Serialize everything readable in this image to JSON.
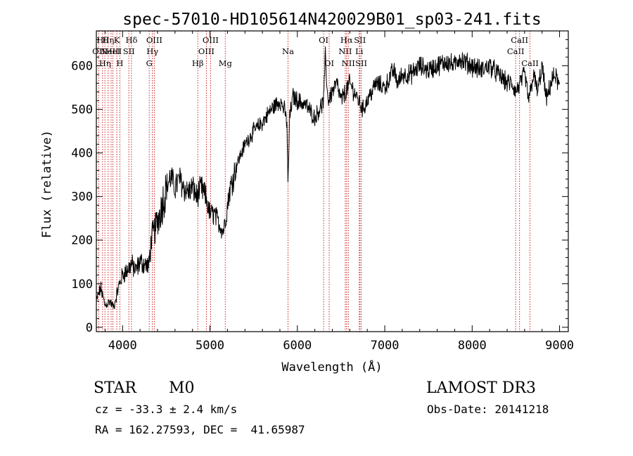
{
  "colors": {
    "axis": "#000000",
    "spectrum": "#000000",
    "line_marker": "#cc2222",
    "background": "#ffffff"
  },
  "chart_data": {
    "type": "line",
    "title": "spec-57010-HD105614N420029B01_sp03-241.fits",
    "xlabel": "Wavelength (Å)",
    "ylabel": "Flux (relative)",
    "xlim": [
      3700,
      9100
    ],
    "ylim": [
      -10,
      680
    ],
    "xticks": [
      "4000",
      "5000",
      "6000",
      "7000",
      "8000",
      "9000"
    ],
    "yticks": [
      "0",
      "100",
      "200",
      "300",
      "400",
      "500",
      "600"
    ],
    "grid": false,
    "series": [
      {
        "x": [
          3700,
          3750,
          3800,
          3850,
          3900,
          3950,
          4000,
          4050,
          4100,
          4150,
          4200,
          4250,
          4300,
          4330,
          4380,
          4450,
          4500,
          4550,
          4600,
          4650,
          4700,
          4750,
          4800,
          4850,
          4900,
          4950,
          5000,
          5050,
          5100,
          5150,
          5180,
          5220,
          5300,
          5400,
          5500,
          5600,
          5700,
          5800,
          5850,
          5880,
          5893,
          5910,
          5950,
          6000,
          6100,
          6200,
          6250,
          6280,
          6300,
          6320,
          6350,
          6400,
          6450,
          6500,
          6550,
          6600,
          6650,
          6700,
          6750,
          6800,
          6900,
          7000,
          7100,
          7150,
          7200,
          7300,
          7400,
          7500,
          7600,
          7700,
          7800,
          7850,
          7900,
          8000,
          8100,
          8200,
          8300,
          8400,
          8450,
          8500,
          8550,
          8600,
          8650,
          8700,
          8750,
          8800,
          8850,
          8900,
          8950,
          9000
        ],
        "y": [
          60,
          90,
          50,
          60,
          45,
          90,
          120,
          130,
          145,
          130,
          150,
          145,
          140,
          200,
          230,
          280,
          320,
          345,
          320,
          340,
          320,
          310,
          320,
          300,
          320,
          300,
          260,
          260,
          240,
          220,
          250,
          310,
          370,
          420,
          450,
          470,
          500,
          520,
          500,
          470,
          320,
          480,
          530,
          520,
          510,
          480,
          500,
          510,
          520,
          620,
          520,
          540,
          560,
          520,
          540,
          560,
          540,
          520,
          500,
          520,
          560,
          550,
          590,
          560,
          580,
          580,
          600,
          590,
          600,
          610,
          600,
          620,
          610,
          600,
          590,
          600,
          580,
          560,
          560,
          540,
          560,
          580,
          520,
          580,
          540,
          600,
          520,
          560,
          580,
          550
        ]
      }
    ],
    "line_markers": [
      {
        "x": 3727,
        "row": 2,
        "label": "OII"
      },
      {
        "x": 3771,
        "row": 1,
        "label": "Hθ"
      },
      {
        "x": 3798,
        "row": 3,
        "label": "Hη"
      },
      {
        "x": 3835,
        "row": 1,
        "label": "Hη"
      },
      {
        "x": 3869,
        "row": 2,
        "label": "NeIII"
      },
      {
        "x": 3889,
        "row": 2,
        "label": "HeI"
      },
      {
        "x": 3934,
        "row": 1,
        "label": "K"
      },
      {
        "x": 3969,
        "row": 3,
        "label": "H"
      },
      {
        "x": 4072,
        "row": 2,
        "label": "SII"
      },
      {
        "x": 4102,
        "row": 1,
        "label": "Hδ"
      },
      {
        "x": 4305,
        "row": 3,
        "label": "G"
      },
      {
        "x": 4341,
        "row": 2,
        "label": "Hγ"
      },
      {
        "x": 4363,
        "row": 1,
        "label": "OIII"
      },
      {
        "x": 4861,
        "row": 3,
        "label": "Hβ"
      },
      {
        "x": 4959,
        "row": 2,
        "label": "OIII"
      },
      {
        "x": 5007,
        "row": 1,
        "label": "OIII"
      },
      {
        "x": 5175,
        "row": 3,
        "label": "Mg"
      },
      {
        "x": 5893,
        "row": 2,
        "label": "Na"
      },
      {
        "x": 6300,
        "row": 1,
        "label": "OI"
      },
      {
        "x": 6364,
        "row": 3,
        "label": "OI"
      },
      {
        "x": 6548,
        "row": 2,
        "label": "NII"
      },
      {
        "x": 6563,
        "row": 1,
        "label": "Hα"
      },
      {
        "x": 6583,
        "row": 3,
        "label": "NII"
      },
      {
        "x": 6708,
        "row": 2,
        "label": "Li"
      },
      {
        "x": 6716,
        "row": 1,
        "label": "SII"
      },
      {
        "x": 6731,
        "row": 3,
        "label": "SII"
      },
      {
        "x": 8498,
        "row": 2,
        "label": "CaII"
      },
      {
        "x": 8542,
        "row": 1,
        "label": "CaII"
      },
      {
        "x": 8662,
        "row": 3,
        "label": "CaII"
      }
    ]
  },
  "info": {
    "object_class": "STAR",
    "subclass": "M0",
    "survey": "LAMOST DR3",
    "redshift": "cz = -33.3 ± 2.4 km/s",
    "obs_date": "Obs-Date: 20141218",
    "coords": "RA = 162.27593, DEC =  41.65987"
  }
}
